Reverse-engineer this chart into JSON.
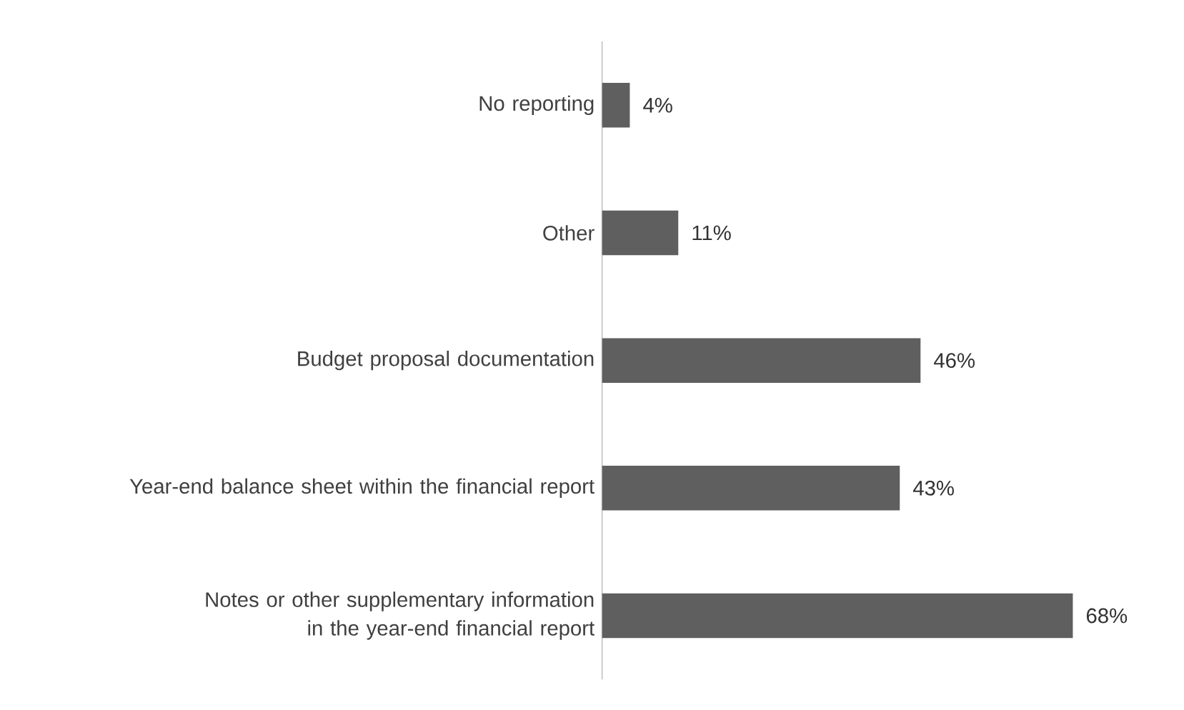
{
  "chart_data": {
    "type": "bar",
    "orientation": "horizontal",
    "categories": [
      "No reporting",
      "Other",
      "Budget proposal documentation",
      "Year-end balance sheet within the financial report",
      "Notes or other supplementary information in the year-end financial report"
    ],
    "values": [
      4,
      11,
      46,
      43,
      68
    ],
    "value_labels": [
      "4%",
      "11%",
      "46%",
      "43%",
      "68%"
    ],
    "color": "#5f5f5f"
  }
}
